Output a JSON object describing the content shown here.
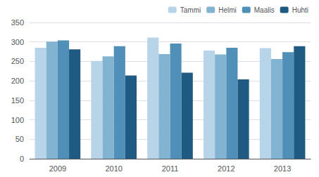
{
  "chart_data": {
    "type": "bar",
    "categories": [
      "2009",
      "2010",
      "2011",
      "2012",
      "2013"
    ],
    "series": [
      {
        "name": "Tammi",
        "color": "#b8d4e8",
        "values": [
          285,
          251,
          311,
          278,
          284
        ]
      },
      {
        "name": "Helmi",
        "color": "#82b4d2",
        "values": [
          301,
          263,
          269,
          268,
          256
        ]
      },
      {
        "name": "Maalis",
        "color": "#5090b8",
        "values": [
          304,
          289,
          296,
          285,
          274
        ]
      },
      {
        "name": "Huhti",
        "color": "#1e5a82",
        "values": [
          281,
          214,
          221,
          204,
          289
        ]
      }
    ],
    "ylim": [
      0,
      350
    ],
    "yticks": [
      0,
      50,
      100,
      150,
      200,
      250,
      300,
      350
    ],
    "grid": true,
    "legend": "upper right"
  }
}
